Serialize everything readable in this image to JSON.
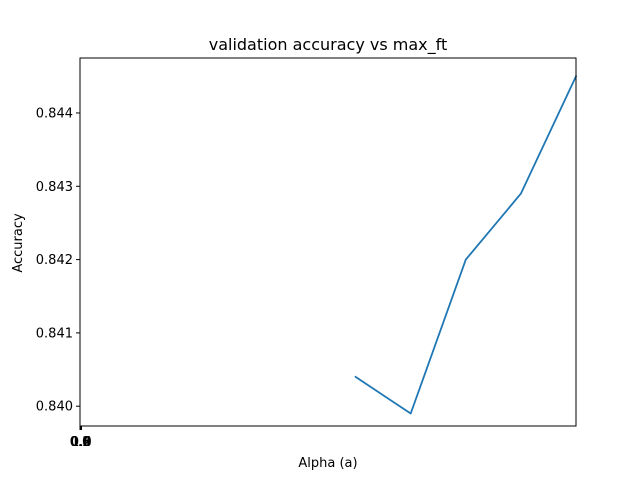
{
  "chart_data": {
    "type": "line",
    "title": "validation accuracy vs max_ft",
    "xlabel": "Alpha (a)",
    "ylabel": "Accuracy",
    "x_tick_labels": [
      "0.0",
      "0.2",
      "0.4",
      "0.6",
      "0.8",
      "1.0"
    ],
    "y_ticks": [
      0.84,
      0.841,
      0.842,
      0.843,
      0.844
    ],
    "y_tick_labels": [
      "0.840",
      "0.841",
      "0.842",
      "0.843",
      "0.844"
    ],
    "x_domain": [
      0,
      9
    ],
    "ylim": [
      0.83973,
      0.84475
    ],
    "series": [
      {
        "x": [
          5,
          6,
          7,
          8,
          9
        ],
        "y": [
          0.8404,
          0.8399,
          0.842,
          0.8429,
          0.8445
        ],
        "color": "#1f77b4"
      }
    ],
    "grid": false,
    "legend": "none"
  }
}
